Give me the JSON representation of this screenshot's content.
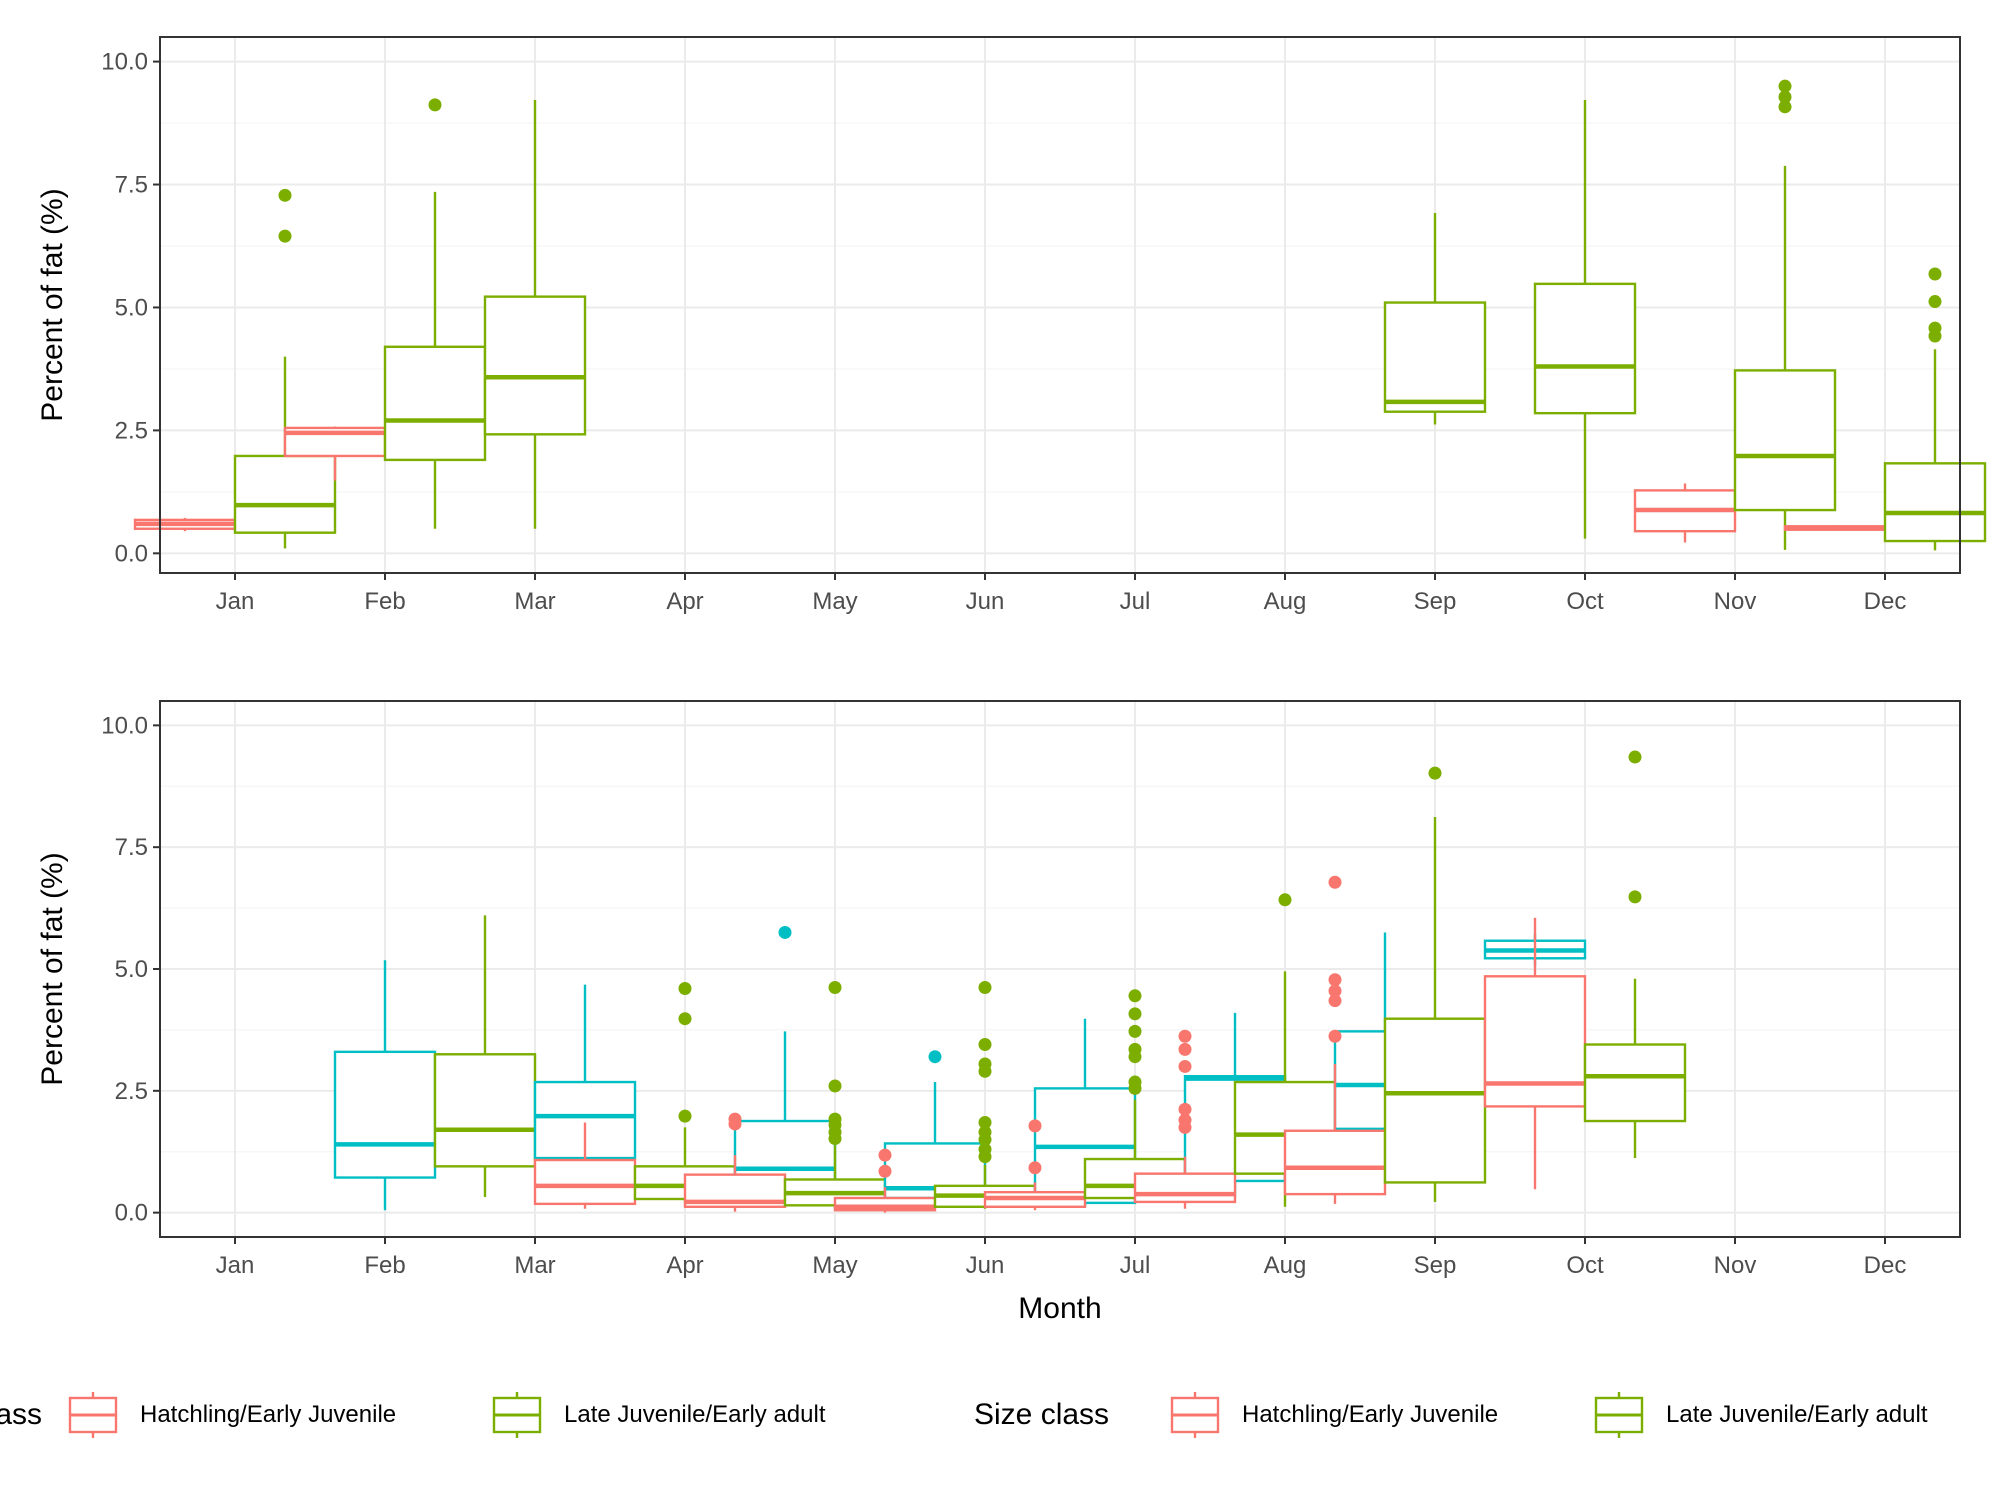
{
  "colors": {
    "Hatchling/Early Juvenile": "#F8766D",
    "Late Juvenile/Early adult": "#7CAE00",
    "Adult": "#00BFC4",
    "grid_major": "#EBEBEB",
    "grid_minor": "#F5F5F5",
    "panel_border": "#333333"
  },
  "chart_data": [
    {
      "type": "boxplot",
      "xlabel": "",
      "ylabel": "Percent of fat (%)",
      "ylim": [
        -0.4,
        10.5
      ],
      "yticks": [
        "0.0",
        "2.5",
        "5.0",
        "7.5",
        "10.0"
      ],
      "ytick_values": [
        0,
        2.5,
        5,
        7.5,
        10
      ],
      "categories": [
        "Jan",
        "Feb",
        "Mar",
        "Apr",
        "May",
        "Jun",
        "Jul",
        "Aug",
        "Sep",
        "Oct",
        "Nov",
        "Dec"
      ],
      "grid": true,
      "groups_per_month": 2,
      "boxes": [
        {
          "month": "Jan",
          "slot": 0,
          "series": "Hatchling/Early Juvenile",
          "lower": 0.45,
          "q1": 0.5,
          "median": 0.6,
          "q3": 0.68,
          "upper": 0.72,
          "outliers": []
        },
        {
          "month": "Jan",
          "slot": 1,
          "series": "Late Juvenile/Early adult",
          "lower": 0.1,
          "q1": 0.42,
          "median": 0.98,
          "q3": 1.98,
          "upper": 4.0,
          "outliers": [
            6.45,
            7.28
          ]
        },
        {
          "month": "Feb",
          "slot": 0,
          "series": "Hatchling/Early Juvenile",
          "lower": 1.48,
          "q1": 1.98,
          "median": 2.45,
          "q3": 2.55,
          "upper": 2.58,
          "outliers": []
        },
        {
          "month": "Feb",
          "slot": 1,
          "series": "Late Juvenile/Early adult",
          "lower": 0.5,
          "q1": 1.9,
          "median": 2.7,
          "q3": 4.2,
          "upper": 7.35,
          "outliers": [
            9.12
          ]
        },
        {
          "month": "Mar",
          "slot": null,
          "series": "Late Juvenile/Early adult",
          "lower": 0.5,
          "q1": 2.42,
          "median": 3.58,
          "q3": 5.22,
          "upper": 9.22,
          "outliers": []
        },
        {
          "month": "Sep",
          "slot": null,
          "series": "Late Juvenile/Early adult",
          "lower": 2.62,
          "q1": 2.88,
          "median": 3.08,
          "q3": 5.1,
          "upper": 6.92,
          "outliers": []
        },
        {
          "month": "Oct",
          "slot": null,
          "series": "Late Juvenile/Early adult",
          "lower": 0.3,
          "q1": 2.85,
          "median": 3.8,
          "q3": 5.48,
          "upper": 9.22,
          "outliers": []
        },
        {
          "month": "Nov",
          "slot": 0,
          "series": "Hatchling/Early Juvenile",
          "lower": 0.22,
          "q1": 0.45,
          "median": 0.88,
          "q3": 1.28,
          "upper": 1.42,
          "outliers": []
        },
        {
          "month": "Nov",
          "slot": 1,
          "series": "Late Juvenile/Early adult",
          "lower": 0.07,
          "q1": 0.88,
          "median": 1.98,
          "q3": 3.72,
          "upper": 7.88,
          "outliers": [
            9.08,
            9.28,
            9.5
          ]
        },
        {
          "month": "Dec",
          "slot": 0,
          "series": "Hatchling/Early Juvenile",
          "lower": 0.46,
          "q1": 0.48,
          "median": 0.52,
          "q3": 0.55,
          "upper": 0.57,
          "outliers": []
        },
        {
          "month": "Dec",
          "slot": 1,
          "series": "Late Juvenile/Early adult",
          "lower": 0.06,
          "q1": 0.25,
          "median": 0.82,
          "q3": 1.83,
          "upper": 4.15,
          "outliers": [
            4.42,
            4.58,
            5.12,
            5.68
          ]
        }
      ]
    },
    {
      "type": "boxplot",
      "xlabel": "Month",
      "ylabel": "Percent of fat (%)",
      "ylim": [
        -0.5,
        10.5
      ],
      "yticks": [
        "0.0",
        "2.5",
        "5.0",
        "7.5",
        "10.0"
      ],
      "ytick_values": [
        0,
        2.5,
        5,
        7.5,
        10
      ],
      "categories": [
        "Jan",
        "Feb",
        "Mar",
        "Apr",
        "May",
        "Jun",
        "Jul",
        "Aug",
        "Sep",
        "Oct",
        "Nov",
        "Dec"
      ],
      "grid": true,
      "groups_per_month": 3,
      "boxes": [
        {
          "month": "Feb",
          "slot": null,
          "series": "Adult",
          "lower": 0.05,
          "q1": 0.72,
          "median": 1.4,
          "q3": 3.3,
          "upper": 5.18,
          "outliers": []
        },
        {
          "month": "Mar",
          "slot": 0.5,
          "series": "Late Juvenile/Early adult",
          "lower": 0.32,
          "q1": 0.95,
          "median": 1.7,
          "q3": 3.25,
          "upper": 6.1,
          "outliers": []
        },
        {
          "month": "Mar",
          "slot": 1.5,
          "series": "Adult",
          "lower": 0.9,
          "q1": 1.12,
          "median": 1.98,
          "q3": 2.68,
          "upper": 4.68,
          "outliers": []
        },
        {
          "month": "Apr",
          "slot": 0,
          "series": "Hatchling/Early Juvenile",
          "lower": 0.08,
          "q1": 0.18,
          "median": 0.55,
          "q3": 1.08,
          "upper": 1.85,
          "outliers": []
        },
        {
          "month": "Apr",
          "slot": 1,
          "series": "Late Juvenile/Early adult",
          "lower": 0.2,
          "q1": 0.28,
          "median": 0.55,
          "q3": 0.95,
          "upper": 1.75,
          "outliers": [
            1.98,
            3.98,
            4.6
          ]
        },
        {
          "month": "Apr",
          "slot": 2,
          "series": "Adult",
          "lower": 0.12,
          "q1": 0.16,
          "median": 0.9,
          "q3": 1.88,
          "upper": 3.72,
          "outliers": [
            5.75
          ]
        },
        {
          "month": "May",
          "slot": 0,
          "series": "Hatchling/Early Juvenile",
          "lower": 0.02,
          "q1": 0.12,
          "median": 0.22,
          "q3": 0.78,
          "upper": 1.18,
          "outliers": [
            1.82,
            1.92
          ]
        },
        {
          "month": "May",
          "slot": 1,
          "series": "Late Juvenile/Early adult",
          "lower": 0.08,
          "q1": 0.15,
          "median": 0.4,
          "q3": 0.68,
          "upper": 1.38,
          "outliers": [
            1.52,
            1.65,
            1.8,
            1.92,
            2.6,
            4.62
          ]
        },
        {
          "month": "May",
          "slot": 2,
          "series": "Adult",
          "lower": 0.18,
          "q1": 0.3,
          "median": 0.5,
          "q3": 1.42,
          "upper": 2.68,
          "outliers": [
            3.2
          ]
        },
        {
          "month": "Jun",
          "slot": 0,
          "series": "Hatchling/Early Juvenile",
          "lower": 0.0,
          "q1": 0.05,
          "median": 0.12,
          "q3": 0.3,
          "upper": 0.52,
          "outliers": [
            0.85,
            1.18
          ]
        },
        {
          "month": "Jun",
          "slot": 1,
          "series": "Late Juvenile/Early adult",
          "lower": 0.08,
          "q1": 0.12,
          "median": 0.35,
          "q3": 0.55,
          "upper": 0.98,
          "outliers": [
            1.15,
            1.3,
            1.5,
            1.65,
            1.85,
            2.9,
            3.05,
            3.45,
            4.62
          ]
        },
        {
          "month": "Jun",
          "slot": 2,
          "series": "Adult",
          "lower": 0.12,
          "q1": 0.2,
          "median": 1.35,
          "q3": 2.55,
          "upper": 3.98,
          "outliers": []
        },
        {
          "month": "Jul",
          "slot": 0,
          "series": "Hatchling/Early Juvenile",
          "lower": 0.05,
          "q1": 0.12,
          "median": 0.3,
          "q3": 0.42,
          "upper": 0.62,
          "outliers": [
            0.92,
            1.78
          ]
        },
        {
          "month": "Jul",
          "slot": 1,
          "series": "Late Juvenile/Early adult",
          "lower": 0.25,
          "q1": 0.3,
          "median": 0.55,
          "q3": 1.1,
          "upper": 2.32,
          "outliers": [
            2.55,
            2.68,
            3.2,
            3.35,
            3.72,
            4.08,
            4.45
          ]
        },
        {
          "month": "Jul",
          "slot": 2,
          "series": "Adult",
          "lower": 0.32,
          "q1": 0.65,
          "median": 2.75,
          "q3": 2.8,
          "upper": 4.1,
          "outliers": []
        },
        {
          "month": "Aug",
          "slot": 0,
          "series": "Hatchling/Early Juvenile",
          "lower": 0.08,
          "q1": 0.22,
          "median": 0.38,
          "q3": 0.8,
          "upper": 1.15,
          "outliers": [
            1.75,
            1.9,
            2.12,
            3.0,
            3.35,
            3.62
          ]
        },
        {
          "month": "Aug",
          "slot": 1,
          "series": "Late Juvenile/Early adult",
          "lower": 0.12,
          "q1": 0.8,
          "median": 1.6,
          "q3": 2.68,
          "upper": 4.95,
          "outliers": [
            6.42
          ]
        },
        {
          "month": "Aug",
          "slot": 2,
          "series": "Adult",
          "lower": 1.3,
          "q1": 1.72,
          "median": 2.62,
          "q3": 3.72,
          "upper": 5.75,
          "outliers": []
        },
        {
          "month": "Sep",
          "slot": 0,
          "series": "Hatchling/Early Juvenile",
          "lower": 0.18,
          "q1": 0.38,
          "median": 0.92,
          "q3": 1.68,
          "upper": 3.05,
          "outliers": [
            3.62,
            4.35,
            4.55,
            4.78,
            6.78
          ]
        },
        {
          "month": "Sep",
          "slot": 1,
          "series": "Late Juvenile/Early adult",
          "lower": 0.22,
          "q1": 0.62,
          "median": 2.45,
          "q3": 3.98,
          "upper": 8.12,
          "outliers": [
            9.02
          ]
        },
        {
          "month": "Sep",
          "slot": 2,
          "series": "Adult",
          "lower": 5.05,
          "q1": 5.22,
          "median": 5.38,
          "q3": 5.58,
          "upper": 5.72,
          "outliers": []
        },
        {
          "month": "Oct",
          "slot": 0.5,
          "series": "Hatchling/Early Juvenile",
          "lower": 0.48,
          "q1": 2.18,
          "median": 2.65,
          "q3": 4.85,
          "upper": 6.05,
          "outliers": []
        },
        {
          "month": "Oct",
          "slot": 1.5,
          "series": "Late Juvenile/Early adult",
          "lower": 1.12,
          "q1": 1.88,
          "median": 2.8,
          "q3": 3.45,
          "upper": 4.8,
          "outliers": [
            6.48,
            9.35
          ]
        }
      ]
    }
  ],
  "legend_left": {
    "title": "Size class",
    "items": [
      "Hatchling/Early Juvenile",
      "Late Juvenile/Early adult"
    ]
  },
  "legend_right": {
    "title": "Size class",
    "items": [
      "Hatchling/Early Juvenile",
      "Late Juvenile/Early adult"
    ]
  }
}
